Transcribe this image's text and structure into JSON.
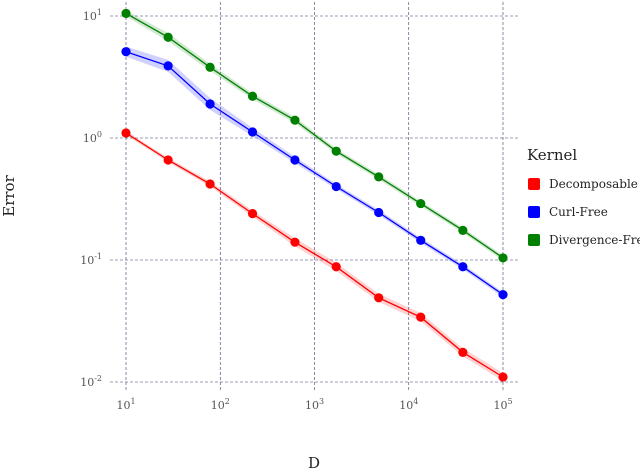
{
  "chart_data": {
    "type": "line",
    "xlabel": "D",
    "ylabel": "Error",
    "x_scale": "log",
    "y_scale": "log",
    "xlim": [
      10,
      100000
    ],
    "ylim": [
      0.01,
      10
    ],
    "grid": true,
    "legend": {
      "title": "Kernel",
      "placement": "right"
    },
    "x_ticks": [
      {
        "base": "10",
        "exp": "1",
        "value": 10
      },
      {
        "base": "10",
        "exp": "2",
        "value": 100
      },
      {
        "base": "10",
        "exp": "3",
        "value": 1000
      },
      {
        "base": "10",
        "exp": "4",
        "value": 10000
      },
      {
        "base": "10",
        "exp": "5",
        "value": 100000
      }
    ],
    "y_ticks": [
      {
        "base": "10",
        "exp": "-2",
        "value": 0.01
      },
      {
        "base": "10",
        "exp": "-1",
        "value": 0.1
      },
      {
        "base": "10",
        "exp": "0",
        "value": 1
      },
      {
        "base": "10",
        "exp": "1",
        "value": 10
      }
    ],
    "x": [
      10,
      28,
      78,
      220,
      620,
      1700,
      4800,
      13400,
      37500,
      100000
    ],
    "series": [
      {
        "name": "Decomposable",
        "color": "#ff0000",
        "values": [
          1.1,
          0.66,
          0.42,
          0.24,
          0.14,
          0.088,
          0.049,
          0.034,
          0.0175,
          0.011
        ],
        "band": [
          0.04,
          0.04,
          0.05,
          0.06,
          0.08,
          0.08,
          0.08,
          0.08,
          0.08,
          0.08
        ]
      },
      {
        "name": "Curl-Free",
        "color": "#0000ff",
        "values": [
          5.1,
          3.9,
          1.9,
          1.12,
          0.66,
          0.4,
          0.245,
          0.145,
          0.088,
          0.052
        ],
        "band": [
          0.1,
          0.12,
          0.12,
          0.08,
          0.06,
          0.05,
          0.05,
          0.05,
          0.05,
          0.05
        ]
      },
      {
        "name": "Divergence-Free",
        "color": "#008000",
        "values": [
          10.5,
          6.7,
          3.8,
          2.2,
          1.4,
          0.78,
          0.48,
          0.29,
          0.175,
          0.104
        ],
        "band": [
          0.06,
          0.08,
          0.07,
          0.06,
          0.06,
          0.05,
          0.05,
          0.05,
          0.05,
          0.05
        ]
      }
    ]
  }
}
